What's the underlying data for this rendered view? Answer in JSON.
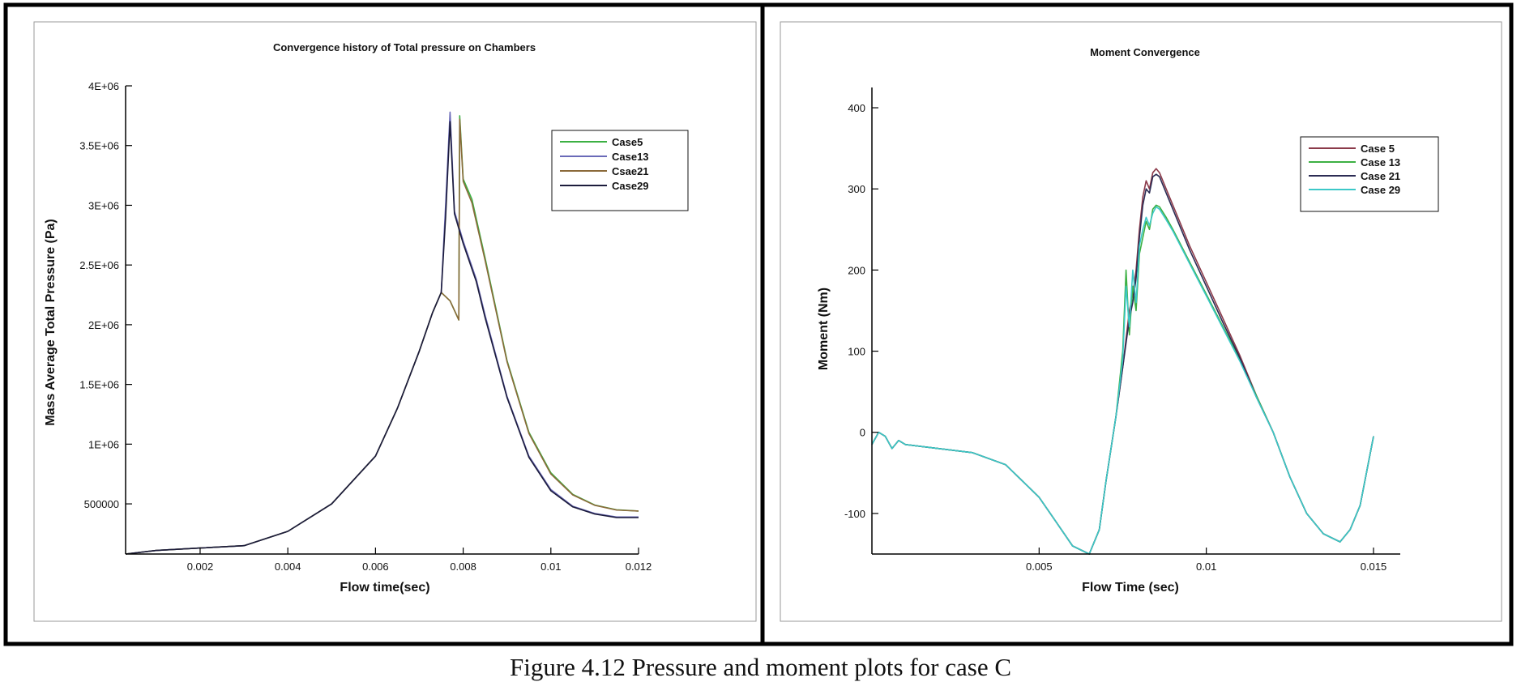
{
  "figure": {
    "caption": "Figure 4.12 Pressure and moment plots for case C"
  },
  "chart_data": [
    {
      "type": "line",
      "title": "Convergence history of Total pressure on Chambers",
      "xlabel": "Flow time(sec)",
      "ylabel": "Mass Average Total Pressure (Pa)",
      "xlim": [
        0.0003,
        0.012
      ],
      "ylim": [
        80000,
        4000000
      ],
      "xticks": [
        0.002,
        0.004,
        0.006,
        0.008,
        0.01,
        0.012
      ],
      "xtick_labels": [
        "0.002",
        "0.004",
        "0.006",
        "0.008",
        "0.01",
        "0.012"
      ],
      "yticks": [
        500000,
        1000000,
        1500000,
        2000000,
        2500000,
        3000000,
        3500000,
        4000000
      ],
      "ytick_labels": [
        "500000",
        "1E+06",
        "1.5E+06",
        "2E+06",
        "2.5E+06",
        "3E+06",
        "3.5E+06",
        "4E+06"
      ],
      "grid": false,
      "legend_position": "top-right",
      "series": [
        {
          "name": "Case5",
          "color": "#3cb043",
          "x": [
            0.0003,
            0.001,
            0.002,
            0.003,
            0.004,
            0.005,
            0.006,
            0.0065,
            0.007,
            0.0073,
            0.0075,
            0.0077,
            0.0079,
            0.00792,
            0.008,
            0.0082,
            0.0085,
            0.009,
            0.0095,
            0.01,
            0.0105,
            0.011,
            0.0115,
            0.012
          ],
          "y": [
            80000,
            110000,
            130000,
            150000,
            270000,
            500000,
            900000,
            1300000,
            1780000,
            2100000,
            2270000,
            2200000,
            2040000,
            3750000,
            3220000,
            3050000,
            2560000,
            1700000,
            1100000,
            760000,
            580000,
            490000,
            450000,
            440000
          ]
        },
        {
          "name": "Case13",
          "color": "#6a6ab8",
          "x": [
            0.0003,
            0.001,
            0.002,
            0.003,
            0.004,
            0.005,
            0.006,
            0.0065,
            0.007,
            0.0073,
            0.0075,
            0.0076,
            0.0077,
            0.0078,
            0.008,
            0.0083,
            0.0085,
            0.009,
            0.0095,
            0.01,
            0.0105,
            0.011,
            0.0115,
            0.012
          ],
          "y": [
            80000,
            110000,
            130000,
            150000,
            270000,
            500000,
            900000,
            1300000,
            1780000,
            2100000,
            2270000,
            3000000,
            3780000,
            2950000,
            2700000,
            2380000,
            2080000,
            1400000,
            900000,
            620000,
            480000,
            420000,
            390000,
            390000
          ]
        },
        {
          "name": "Csae21",
          "color": "#8b6a3a",
          "x": [
            0.0003,
            0.001,
            0.002,
            0.003,
            0.004,
            0.005,
            0.006,
            0.0065,
            0.007,
            0.0073,
            0.0075,
            0.0077,
            0.0079,
            0.00792,
            0.008,
            0.0082,
            0.0085,
            0.009,
            0.0095,
            0.01,
            0.0105,
            0.011,
            0.0115,
            0.012
          ],
          "y": [
            80000,
            110000,
            130000,
            150000,
            270000,
            500000,
            900000,
            1300000,
            1780000,
            2100000,
            2270000,
            2200000,
            2040000,
            3720000,
            3200000,
            3020000,
            2540000,
            1690000,
            1090000,
            750000,
            575000,
            488000,
            448000,
            440000
          ]
        },
        {
          "name": "Case29",
          "color": "#1c1c3c",
          "x": [
            0.0003,
            0.001,
            0.002,
            0.003,
            0.004,
            0.005,
            0.006,
            0.0065,
            0.007,
            0.0073,
            0.0075,
            0.0076,
            0.0077,
            0.0078,
            0.008,
            0.0083,
            0.0085,
            0.009,
            0.0095,
            0.01,
            0.0105,
            0.011,
            0.0115,
            0.012
          ],
          "y": [
            80000,
            110000,
            130000,
            150000,
            270000,
            500000,
            900000,
            1300000,
            1780000,
            2100000,
            2270000,
            2900000,
            3700000,
            2930000,
            2680000,
            2360000,
            2060000,
            1390000,
            890000,
            610000,
            475000,
            415000,
            385000,
            385000
          ]
        }
      ]
    },
    {
      "type": "line",
      "title": "Moment Convergence",
      "xlabel": "Flow Time (sec)",
      "ylabel": "Moment (Nm)",
      "xlim": [
        0,
        0.0158
      ],
      "ylim": [
        -150,
        425
      ],
      "xticks": [
        0.005,
        0.01,
        0.015
      ],
      "xtick_labels": [
        "0.005",
        "0.01",
        "0.015"
      ],
      "yticks": [
        -100,
        0,
        100,
        200,
        300,
        400
      ],
      "ytick_labels": [
        "-100",
        "0",
        "100",
        "200",
        "300",
        "400"
      ],
      "grid": false,
      "legend_position": "top-right",
      "series": [
        {
          "name": "Case 5",
          "color": "#8b3a4a",
          "x": [
            0,
            0.0002,
            0.0004,
            0.0006,
            0.0008,
            0.001,
            0.002,
            0.003,
            0.004,
            0.005,
            0.0055,
            0.006,
            0.0065,
            0.0068,
            0.007,
            0.0073,
            0.0075,
            0.0077,
            0.0078,
            0.0079,
            0.008,
            0.0081,
            0.0082,
            0.0083,
            0.0084,
            0.0085,
            0.0086,
            0.0088,
            0.009,
            0.0095,
            0.01,
            0.0105,
            0.011,
            0.0115,
            0.012,
            0.0125,
            0.013,
            0.0135,
            0.014,
            0.0143,
            0.0146,
            0.015
          ],
          "y": [
            -15,
            0,
            -5,
            -20,
            -10,
            -15,
            -20,
            -25,
            -40,
            -80,
            -110,
            -140,
            -150,
            -120,
            -60,
            20,
            80,
            150,
            170,
            200,
            250,
            290,
            310,
            300,
            320,
            325,
            320,
            300,
            280,
            230,
            185,
            140,
            95,
            45,
            0,
            -55,
            -100,
            -125,
            -135,
            -120,
            -90,
            -5
          ]
        },
        {
          "name": "Case 13",
          "color": "#3cb043",
          "x": [
            0,
            0.0002,
            0.0004,
            0.0006,
            0.0008,
            0.001,
            0.002,
            0.003,
            0.004,
            0.005,
            0.0055,
            0.006,
            0.0065,
            0.0068,
            0.007,
            0.0073,
            0.0075,
            0.0076,
            0.0077,
            0.0078,
            0.0079,
            0.008,
            0.0081,
            0.0082,
            0.0083,
            0.0084,
            0.0085,
            0.0086,
            0.0088,
            0.009,
            0.0095,
            0.01,
            0.0105,
            0.011,
            0.0115,
            0.012,
            0.0125,
            0.013,
            0.0135,
            0.014,
            0.0143,
            0.0146,
            0.015
          ],
          "y": [
            -15,
            0,
            -5,
            -20,
            -10,
            -15,
            -20,
            -25,
            -40,
            -80,
            -110,
            -140,
            -150,
            -120,
            -60,
            20,
            100,
            200,
            120,
            180,
            150,
            220,
            240,
            260,
            250,
            275,
            280,
            278,
            265,
            250,
            210,
            170,
            130,
            90,
            45,
            0,
            -55,
            -100,
            -125,
            -135,
            -120,
            -90,
            -5
          ]
        },
        {
          "name": "Case 21",
          "color": "#2c2c54",
          "x": [
            0,
            0.0002,
            0.0004,
            0.0006,
            0.0008,
            0.001,
            0.002,
            0.003,
            0.004,
            0.005,
            0.0055,
            0.006,
            0.0065,
            0.0068,
            0.007,
            0.0073,
            0.0075,
            0.0077,
            0.0078,
            0.0079,
            0.008,
            0.0081,
            0.0082,
            0.0083,
            0.0084,
            0.0085,
            0.0086,
            0.0088,
            0.009,
            0.0095,
            0.01,
            0.0105,
            0.011,
            0.0115,
            0.012,
            0.0125,
            0.013,
            0.0135,
            0.014,
            0.0143,
            0.0146,
            0.015
          ],
          "y": [
            -15,
            0,
            -5,
            -20,
            -10,
            -15,
            -20,
            -25,
            -40,
            -80,
            -110,
            -140,
            -150,
            -120,
            -60,
            20,
            80,
            140,
            160,
            190,
            240,
            280,
            300,
            295,
            315,
            318,
            315,
            295,
            275,
            225,
            180,
            135,
            92,
            43,
            0,
            -55,
            -100,
            -125,
            -135,
            -120,
            -90,
            -5
          ]
        },
        {
          "name": "Case 29",
          "color": "#3cc8c8",
          "x": [
            0,
            0.0002,
            0.0004,
            0.0006,
            0.0008,
            0.001,
            0.002,
            0.003,
            0.004,
            0.005,
            0.0055,
            0.006,
            0.0065,
            0.0068,
            0.007,
            0.0073,
            0.0075,
            0.0076,
            0.0077,
            0.0078,
            0.0079,
            0.008,
            0.0081,
            0.0082,
            0.0083,
            0.0084,
            0.0085,
            0.0086,
            0.0088,
            0.009,
            0.0095,
            0.01,
            0.0105,
            0.011,
            0.0115,
            0.012,
            0.0125,
            0.013,
            0.0135,
            0.014,
            0.0143,
            0.0146,
            0.015
          ],
          "y": [
            -15,
            0,
            -5,
            -20,
            -10,
            -15,
            -20,
            -25,
            -40,
            -80,
            -110,
            -140,
            -150,
            -120,
            -60,
            20,
            90,
            180,
            130,
            200,
            160,
            230,
            250,
            265,
            255,
            270,
            278,
            275,
            262,
            248,
            208,
            168,
            128,
            88,
            43,
            0,
            -55,
            -100,
            -125,
            -135,
            -120,
            -90,
            -5
          ]
        }
      ]
    }
  ]
}
